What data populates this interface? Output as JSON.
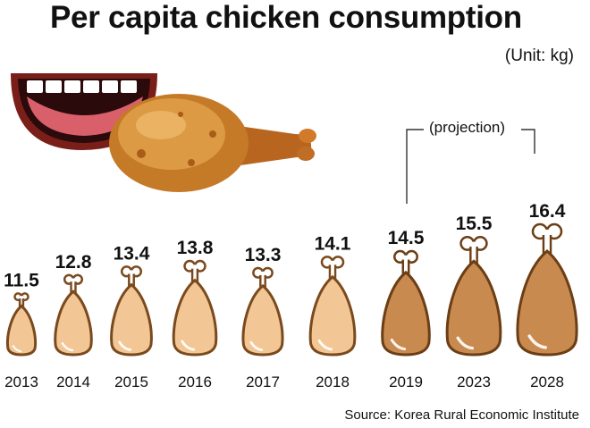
{
  "header": {
    "title": "Per capita chicken consumption",
    "unit": "(Unit: kg)"
  },
  "projection_label": "(projection)",
  "source": "Source: Korea Rural Economic Institute",
  "colors": {
    "actual_fill": "#F2C795",
    "actual_stroke": "#7A4A1E",
    "projection_fill": "#C98A50",
    "projection_stroke": "#6B3E15",
    "bone": "#ffffff"
  },
  "icons": [
    "mouth-icon",
    "fried-drumstick-icon",
    "drumstick-icon"
  ],
  "chart_data": {
    "type": "bar",
    "title": "Per capita chicken consumption",
    "unit": "(Unit: kg)",
    "categories": [
      "2013",
      "2014",
      "2015",
      "2016",
      "2017",
      "2018",
      "2019",
      "2023",
      "2028"
    ],
    "values": [
      11.5,
      12.8,
      13.4,
      13.8,
      13.3,
      14.1,
      14.5,
      15.5,
      16.4
    ],
    "value_labels": [
      "11.5",
      "12.8",
      "13.4",
      "13.8",
      "13.3",
      "14.1",
      "14.5",
      "15.5",
      "16.4"
    ],
    "projection": [
      false,
      false,
      false,
      false,
      false,
      false,
      true,
      true,
      true
    ],
    "annotations": [
      "(projection)"
    ]
  }
}
